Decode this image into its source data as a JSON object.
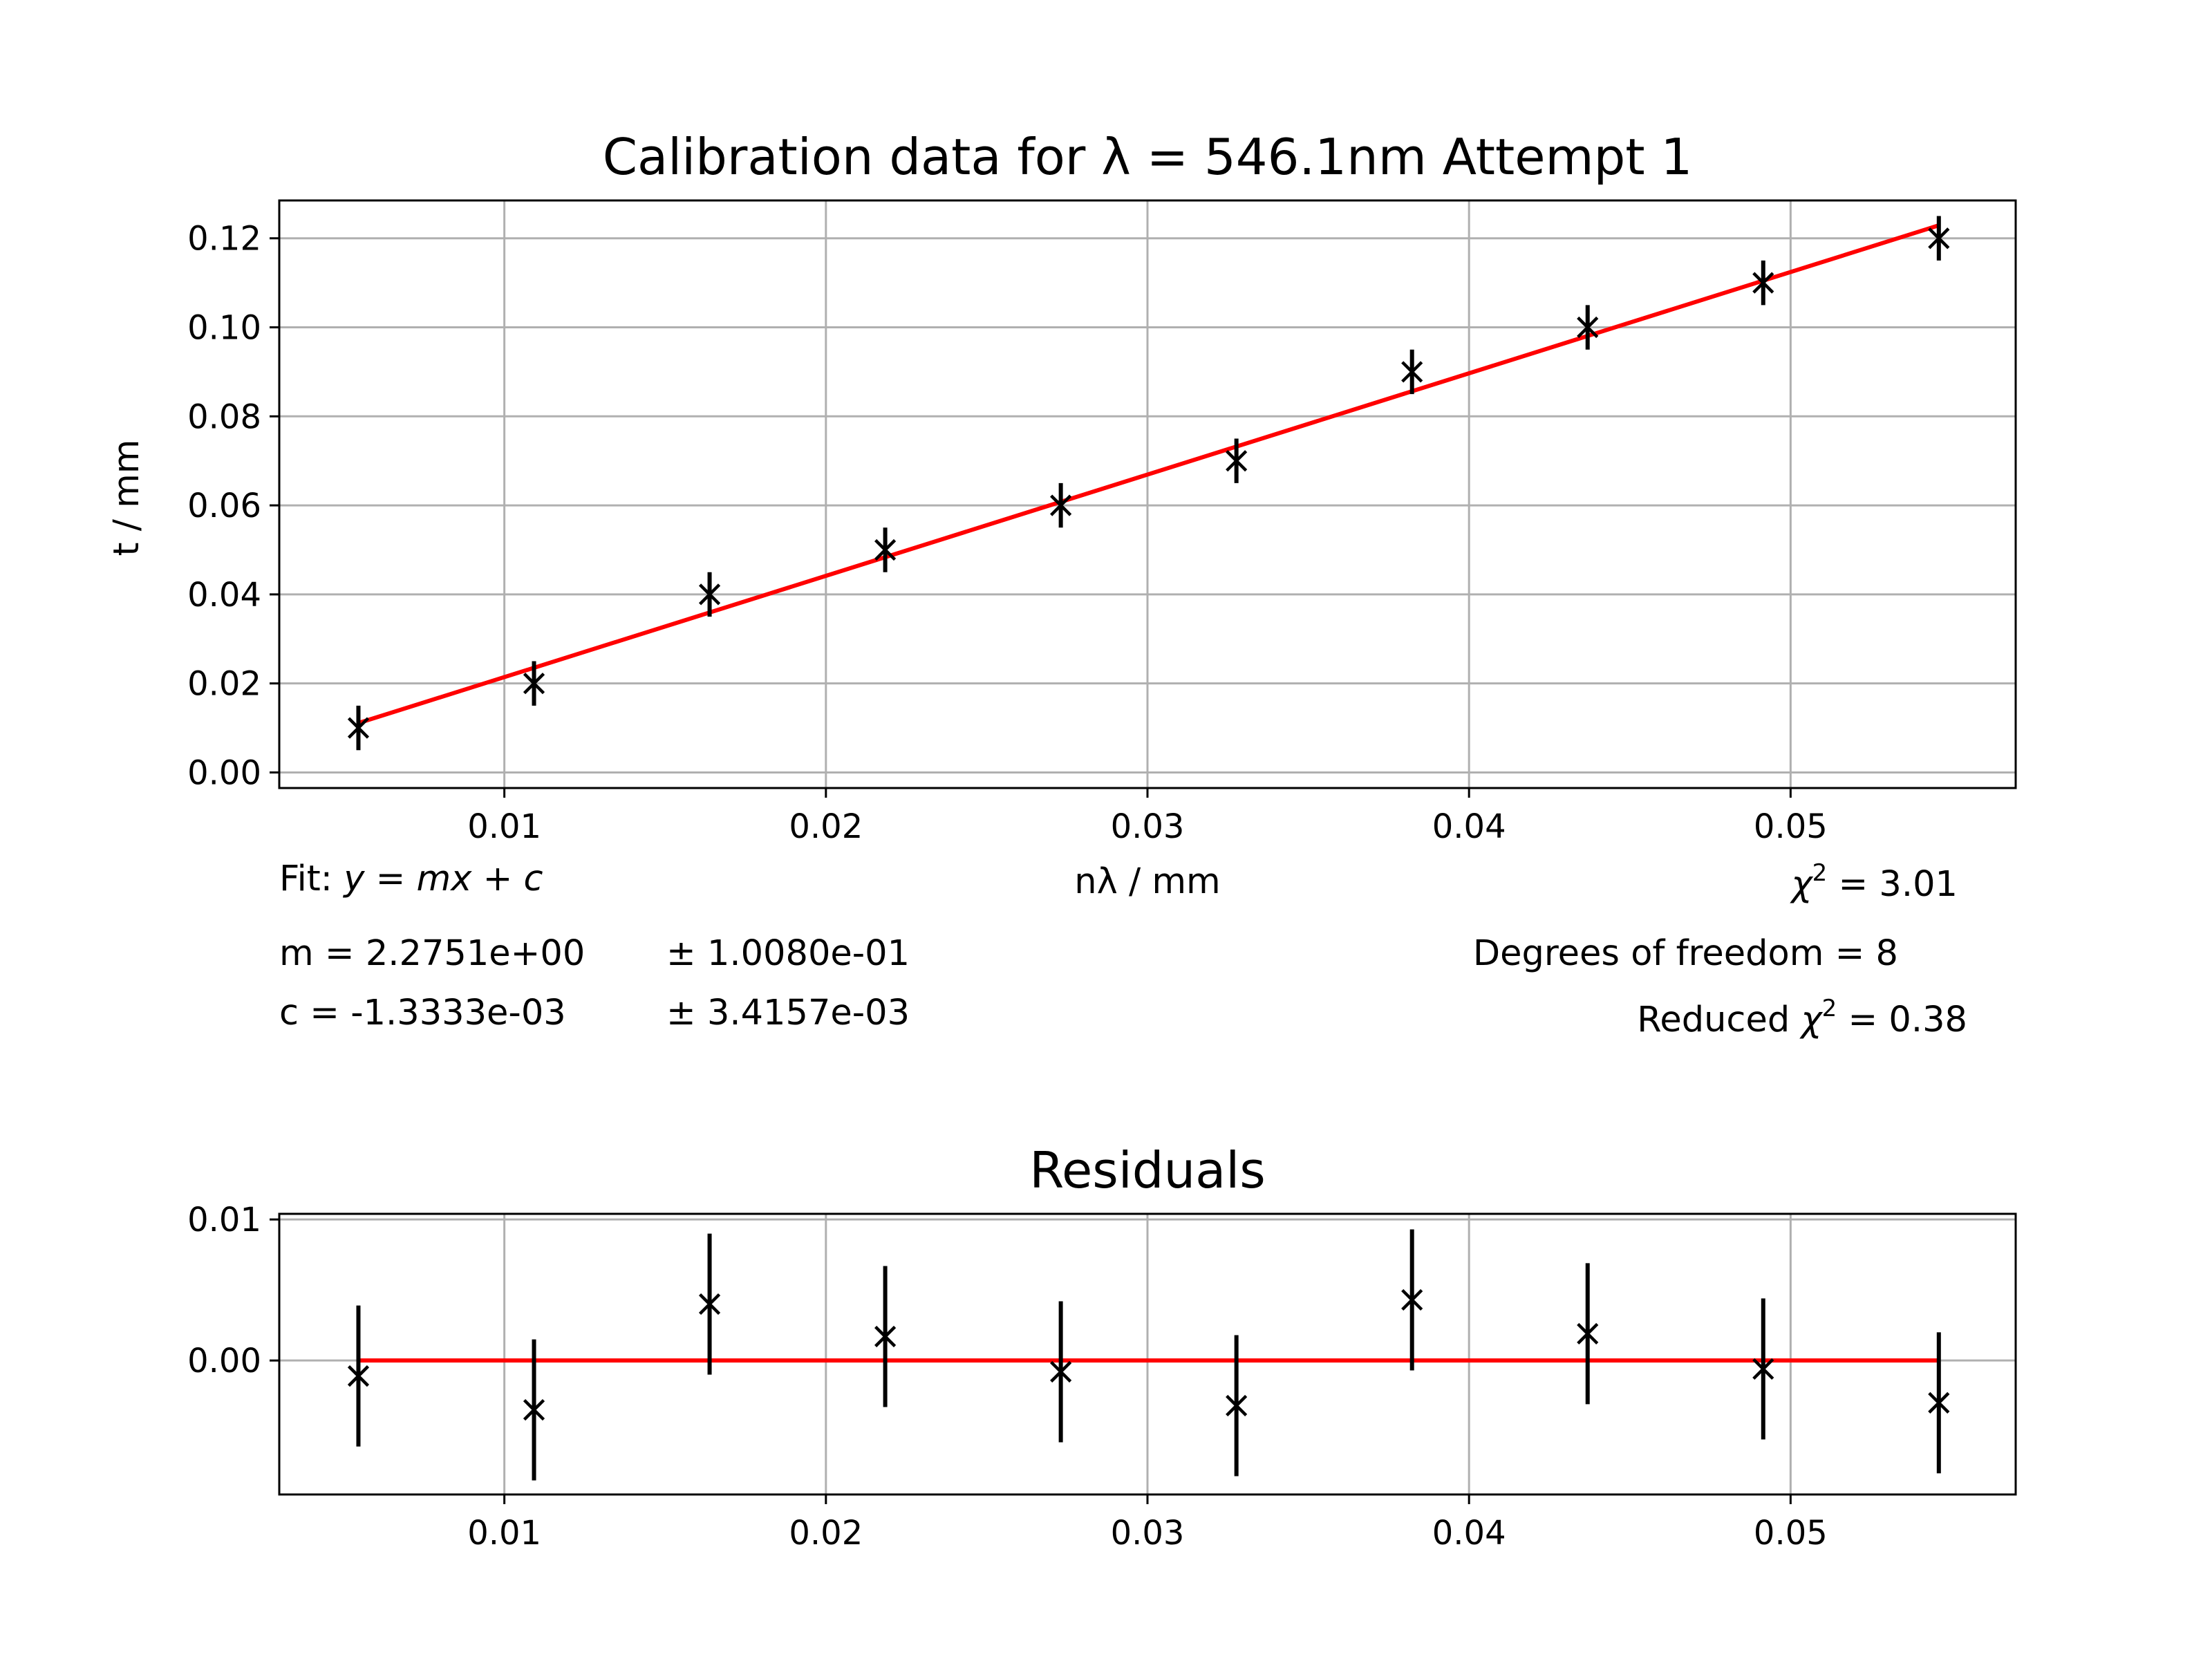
{
  "chart_data": [
    {
      "type": "scatter",
      "title": "Calibration data for λ = 546.1nm Attempt 1",
      "xlabel": "nλ / mm",
      "ylabel": "t / mm",
      "xlim": [
        0.003,
        0.057
      ],
      "ylim": [
        -0.0035,
        0.1285
      ],
      "xticks": [
        0.01,
        0.02,
        0.03,
        0.04,
        0.05
      ],
      "xtick_labels": [
        "0.01",
        "0.02",
        "0.03",
        "0.04",
        "0.05"
      ],
      "yticks": [
        0.0,
        0.02,
        0.04,
        0.06,
        0.08,
        0.1,
        0.12
      ],
      "ytick_labels": [
        "0.00",
        "0.02",
        "0.04",
        "0.06",
        "0.08",
        "0.10",
        "0.12"
      ],
      "grid": true,
      "colors": {
        "points": "#000000",
        "fit": "#ff0000",
        "grid": "#b0b0b0"
      },
      "series": [
        {
          "kind": "errorbar",
          "x": [
            0.005461,
            0.010922,
            0.016383,
            0.021844,
            0.027305,
            0.032766,
            0.038227,
            0.043688,
            0.049149,
            0.05461
          ],
          "y": [
            0.01,
            0.02,
            0.04,
            0.05,
            0.06,
            0.07,
            0.09,
            0.1,
            0.11,
            0.12
          ],
          "yerr": [
            0.005,
            0.005,
            0.005,
            0.005,
            0.005,
            0.005,
            0.005,
            0.005,
            0.005,
            0.005
          ]
        },
        {
          "kind": "fit-line",
          "slope": 2.2751,
          "intercept": -0.0013333,
          "x": [
            0.005461,
            0.05461
          ]
        }
      ],
      "annotations": {
        "fit_prefix": "Fit: ",
        "fit_equation": "y = mx + c",
        "m_text": "m = 2.2751e+00",
        "m_err": "± 1.0080e-01",
        "c_text": "c = -1.3333e-03",
        "c_err": "± 3.4157e-03",
        "chi2_symbol": "χ",
        "chi2_power": "2",
        "chi2_value": " = 3.01",
        "dof_text": "Degrees of freedom = 8",
        "red_chi2_prefix": "Reduced ",
        "red_chi2_symbol": "χ",
        "red_chi2_power": "2",
        "red_chi2_value": " = 0.38"
      }
    },
    {
      "type": "scatter",
      "title": "Residuals",
      "xlim": [
        0.003,
        0.057
      ],
      "ylim": [
        -0.0095,
        0.0104
      ],
      "xticks": [
        0.01,
        0.02,
        0.03,
        0.04,
        0.05
      ],
      "xtick_labels": [
        "0.01",
        "0.02",
        "0.03",
        "0.04",
        "0.05"
      ],
      "yticks": [
        0.0,
        0.01
      ],
      "ytick_labels": [
        "0.00",
        "0.01"
      ],
      "grid": true,
      "series": [
        {
          "kind": "errorbar",
          "x": [
            0.005461,
            0.010922,
            0.016383,
            0.021844,
            0.027305,
            0.032766,
            0.038227,
            0.043688,
            0.049149,
            0.05461
          ],
          "y": [
            -0.0011,
            -0.0035,
            0.004,
            0.0017,
            -0.0008,
            -0.0032,
            0.0043,
            0.0019,
            -0.0006,
            -0.003
          ],
          "yerr": [
            0.005,
            0.005,
            0.005,
            0.005,
            0.005,
            0.005,
            0.005,
            0.005,
            0.005,
            0.005
          ]
        },
        {
          "kind": "zero-line",
          "y": 0.0,
          "x": [
            0.005461,
            0.05461
          ]
        }
      ]
    }
  ]
}
